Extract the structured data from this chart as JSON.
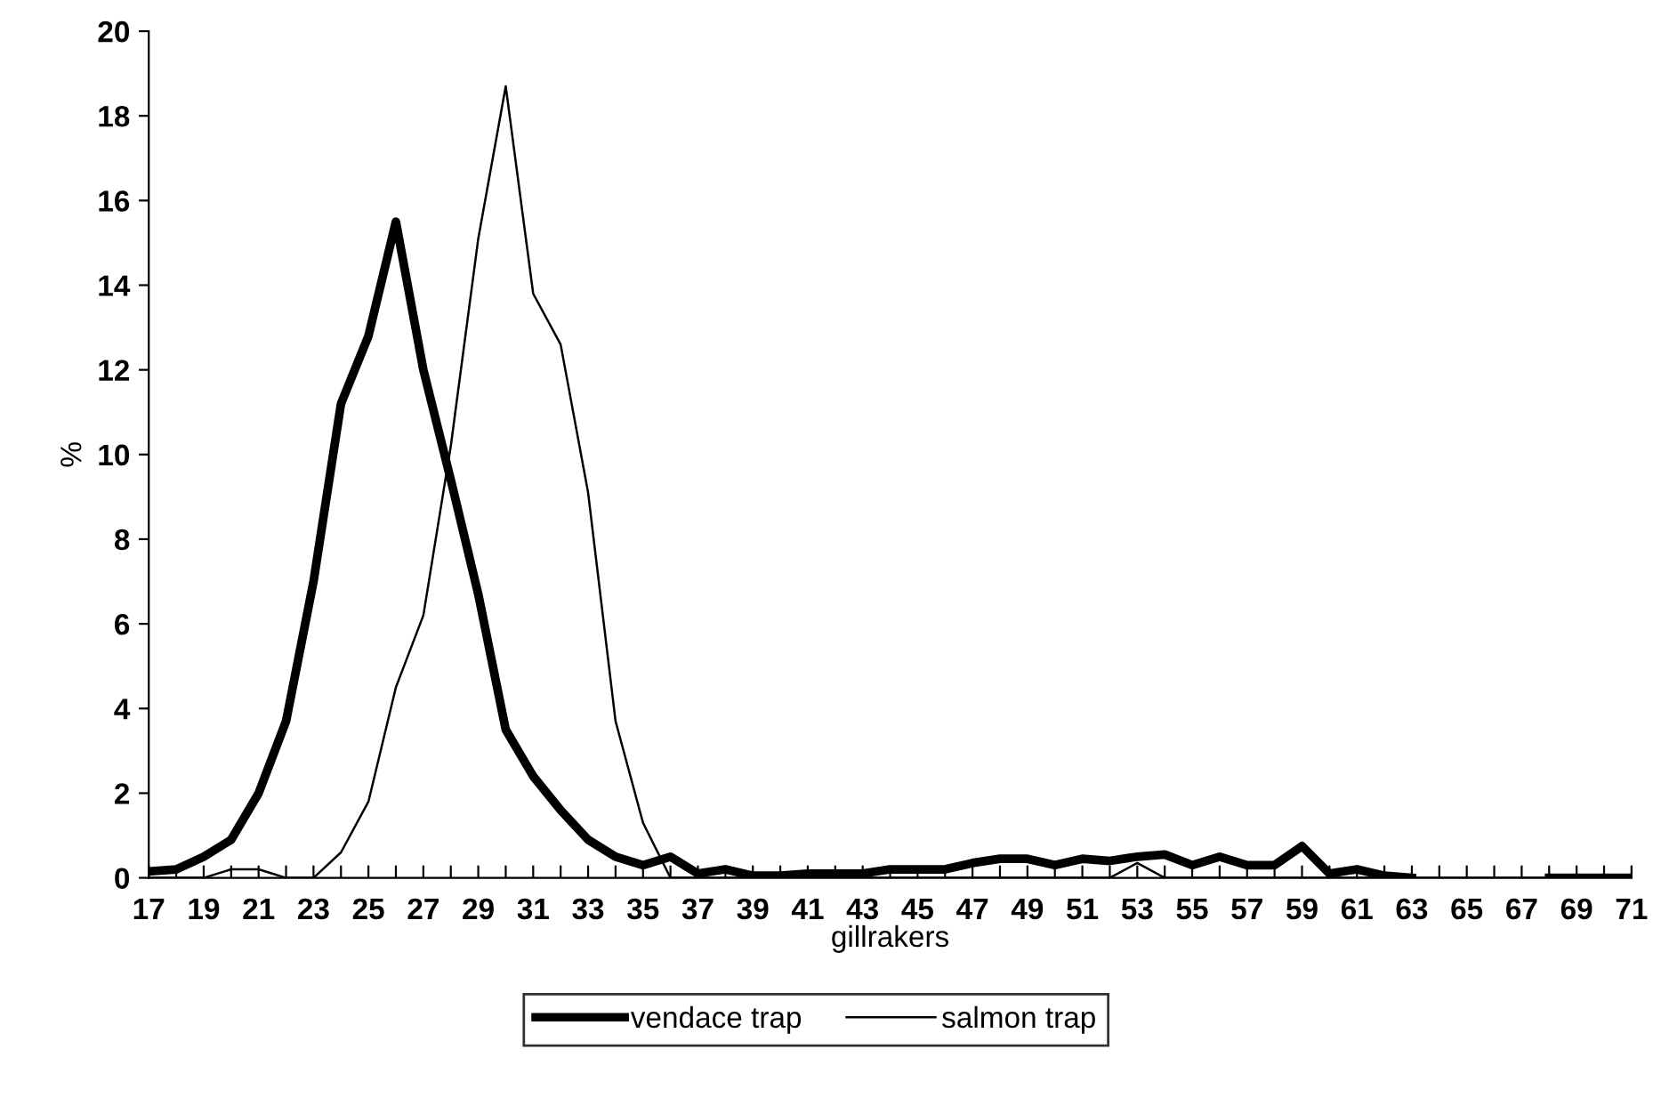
{
  "chart_data": {
    "type": "line",
    "xlabel": "gillrakers",
    "ylabel": "%",
    "categories": [
      "17",
      null,
      "19",
      null,
      "21",
      null,
      "23",
      null,
      "25",
      null,
      "27",
      null,
      "29",
      null,
      "31",
      null,
      "33",
      null,
      "35",
      null,
      "37",
      null,
      "39",
      null,
      "41",
      null,
      "43",
      null,
      "45",
      null,
      "47",
      null,
      "49",
      null,
      "51",
      null,
      "53",
      null,
      "55",
      null,
      "57",
      null,
      "59",
      null,
      "61",
      null,
      "63",
      null,
      "65",
      null,
      "67",
      null,
      "69",
      null,
      "71"
    ],
    "series": [
      {
        "name": "vendace trap",
        "color": "#000000",
        "values": [
          0.15,
          0.2,
          0.5,
          0.9,
          2.0,
          3.7,
          7.0,
          11.2,
          12.8,
          15.5,
          12.0,
          9.4,
          6.7,
          3.5,
          2.4,
          1.6,
          0.9,
          0.5,
          0.3,
          0.5,
          0.1,
          0.2,
          0.05,
          0.05,
          0.1,
          0.1,
          0.1,
          0.2,
          0.2,
          0.2,
          0.35,
          0.45,
          0.45,
          0.3,
          0.45,
          0.4,
          0.5,
          0.55,
          0.3,
          0.5,
          0.3,
          0.3,
          0.75,
          0.1,
          0.2,
          0.05,
          0,
          null,
          null,
          null,
          null,
          0,
          0,
          0,
          0
        ]
      },
      {
        "name": "salmon trap",
        "color": "#000000",
        "values": [
          0,
          0,
          0,
          0.2,
          0.2,
          0,
          0,
          0.6,
          1.8,
          4.5,
          6.2,
          10.2,
          15.1,
          18.7,
          13.8,
          12.6,
          9.1,
          3.7,
          1.3,
          0,
          0,
          0,
          0,
          0,
          0,
          0,
          0,
          0,
          0,
          0,
          0,
          0,
          0,
          0,
          0,
          0,
          0.35,
          0,
          0,
          0,
          0,
          0,
          0,
          0,
          0,
          0,
          0,
          0,
          0,
          0,
          0,
          0,
          0,
          0,
          0
        ]
      }
    ],
    "ylim": [
      0,
      20
    ],
    "yticks": [
      0,
      2,
      4,
      6,
      8,
      10,
      12,
      14,
      16,
      18,
      20
    ],
    "grid": false,
    "legend": "bottom",
    "marker": "none",
    "line_style": "solid"
  }
}
